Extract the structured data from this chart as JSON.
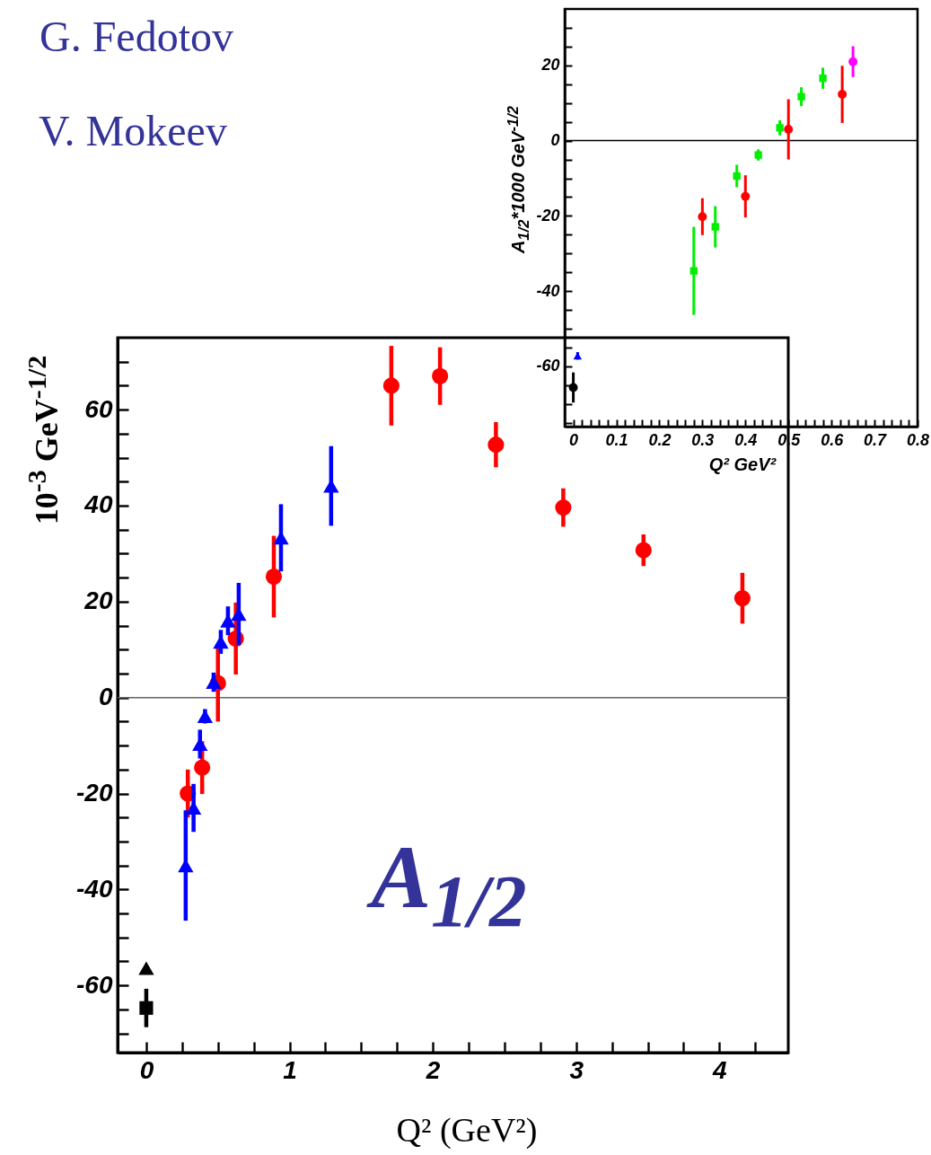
{
  "chart_data": [
    {
      "type": "scatter",
      "xlabel": "Q² (GeV²)",
      "ylabel": "10$^{-3}$ GeV$^{-1/2}$",
      "annotations": [
        "G. Fedotov",
        "V. Mokeev",
        "A$_{1/2}$"
      ],
      "xlim": [
        -0.2,
        4.48
      ],
      "ylim": [
        -74,
        75
      ],
      "xticks": [
        0,
        {
          "value": 0.25,
          "label": null
        },
        {
          "value": 0.5,
          "label": null
        },
        {
          "value": 0.75,
          "label": null
        },
        1,
        {
          "value": 1.25,
          "label": null
        },
        {
          "value": 1.5,
          "label": null
        },
        {
          "value": 1.75,
          "label": null
        },
        2,
        {
          "value": 2.25,
          "label": null
        },
        {
          "value": 2.5,
          "label": null
        },
        {
          "value": 2.75,
          "label": null
        },
        3,
        {
          "value": 3.25,
          "label": null
        },
        {
          "value": 3.5,
          "label": null
        },
        {
          "value": 3.75,
          "label": null
        },
        4,
        {
          "value": 4.25,
          "label": null
        }
      ],
      "yticks": [
        {
          "value": -70,
          "label": null
        },
        {
          "value": -65,
          "label": null
        },
        -60,
        {
          "value": -55,
          "label": null
        },
        {
          "value": -50,
          "label": null
        },
        {
          "value": -45,
          "label": null
        },
        -40,
        {
          "value": -35,
          "label": null
        },
        {
          "value": -30,
          "label": null
        },
        {
          "value": -25,
          "label": null
        },
        -20,
        {
          "value": -15,
          "label": null
        },
        {
          "value": -10,
          "label": null
        },
        {
          "value": -5,
          "label": null
        },
        0,
        {
          "value": 5,
          "label": null
        },
        {
          "value": 10,
          "label": null
        },
        {
          "value": 15,
          "label": null
        },
        20,
        {
          "value": 25,
          "label": null
        },
        {
          "value": 30,
          "label": null
        },
        {
          "value": 35,
          "label": null
        },
        40,
        {
          "value": 45,
          "label": null
        },
        {
          "value": 50,
          "label": null
        },
        {
          "value": 55,
          "label": null
        },
        60,
        {
          "value": 65,
          "label": null
        },
        {
          "value": 70,
          "label": null
        }
      ],
      "ref_lines": [
        {
          "axis": "y",
          "value": 0,
          "color": "#666666"
        }
      ],
      "series": [
        {
          "color": "#ff0000",
          "marker": "circle",
          "x": [
            0.29,
            0.39,
            0.5,
            0.625,
            0.89,
            1.71,
            2.05,
            2.44,
            2.91,
            3.47,
            4.16
          ],
          "values": [
            -20,
            -14.6,
            3,
            12.3,
            25.2,
            65,
            67,
            52.7,
            39.6,
            30.7,
            20.7
          ],
          "errors": [
            5,
            5.5,
            8,
            7.5,
            8.5,
            8.3,
            6,
            4.7,
            4,
            3.3,
            5.3
          ]
        },
        {
          "color": "#0000ff",
          "marker": "triangle",
          "x": [
            0.275,
            0.33,
            0.375,
            0.41,
            0.47,
            0.52,
            0.57,
            0.645,
            0.94,
            1.29
          ],
          "values": [
            -35,
            -23,
            -9.7,
            -3.9,
            3.2,
            11.6,
            16,
            17.4,
            33.3,
            44.1
          ],
          "errors": [
            11.5,
            5,
            3,
            1.5,
            2,
            2.5,
            3,
            6.5,
            7,
            8.3
          ]
        },
        {
          "color": "#000000",
          "marker": "triangle",
          "x": [
            0
          ],
          "values": [
            -56.4
          ]
        },
        {
          "color": "#000000",
          "marker": "square",
          "x": [
            0
          ],
          "values": [
            -64.7
          ],
          "errors": [
            4
          ]
        }
      ]
    },
    {
      "type": "scatter",
      "xlabel": "Q² GeV²",
      "ylabel": "A$_{1/2}$*1000 GeV$^{-1/2}$",
      "xlim": [
        -0.02,
        0.8
      ],
      "ylim": [
        -76,
        35
      ],
      "xticks": [
        0,
        {
          "value": 0.02,
          "label": null
        },
        {
          "value": 0.04,
          "label": null
        },
        {
          "value": 0.06,
          "label": null
        },
        {
          "value": 0.08,
          "label": null
        },
        0.1,
        {
          "value": 0.12,
          "label": null
        },
        {
          "value": 0.14,
          "label": null
        },
        {
          "value": 0.16,
          "label": null
        },
        {
          "value": 0.18,
          "label": null
        },
        0.2,
        {
          "value": 0.22,
          "label": null
        },
        {
          "value": 0.24,
          "label": null
        },
        {
          "value": 0.26,
          "label": null
        },
        {
          "value": 0.28,
          "label": null
        },
        0.3,
        {
          "value": 0.32,
          "label": null
        },
        {
          "value": 0.34,
          "label": null
        },
        {
          "value": 0.36,
          "label": null
        },
        {
          "value": 0.38,
          "label": null
        },
        0.4,
        {
          "value": 0.42,
          "label": null
        },
        {
          "value": 0.44,
          "label": null
        },
        {
          "value": 0.46,
          "label": null
        },
        {
          "value": 0.48,
          "label": null
        },
        0.5,
        {
          "value": 0.52,
          "label": null
        },
        {
          "value": 0.54,
          "label": null
        },
        {
          "value": 0.56,
          "label": null
        },
        {
          "value": 0.58,
          "label": null
        },
        0.6,
        {
          "value": 0.62,
          "label": null
        },
        {
          "value": 0.64,
          "label": null
        },
        {
          "value": 0.66,
          "label": null
        },
        {
          "value": 0.68,
          "label": null
        },
        0.7,
        {
          "value": 0.72,
          "label": null
        },
        {
          "value": 0.74,
          "label": null
        },
        {
          "value": 0.76,
          "label": null
        },
        {
          "value": 0.78,
          "label": null
        },
        0.8
      ],
      "yticks": [
        {
          "value": -75,
          "label": null
        },
        {
          "value": -70,
          "label": null
        },
        {
          "value": -65,
          "label": null
        },
        -60,
        {
          "value": -55,
          "label": null
        },
        {
          "value": -50,
          "label": null
        },
        {
          "value": -45,
          "label": null
        },
        -40,
        {
          "value": -35,
          "label": null
        },
        {
          "value": -30,
          "label": null
        },
        {
          "value": -25,
          "label": null
        },
        -20,
        {
          "value": -15,
          "label": null
        },
        {
          "value": -10,
          "label": null
        },
        {
          "value": -5,
          "label": null
        },
        0,
        {
          "value": 5,
          "label": null
        },
        {
          "value": 10,
          "label": null
        },
        {
          "value": 15,
          "label": null
        },
        20,
        {
          "value": 25,
          "label": null
        },
        {
          "value": 30,
          "label": null
        }
      ],
      "ref_lines": [
        {
          "axis": "y",
          "value": 0,
          "color": "#000000"
        }
      ],
      "series": [
        {
          "color": "#ff0000",
          "marker": "circle",
          "x": [
            0.3,
            0.4,
            0.5,
            0.625
          ],
          "values": [
            -20.2,
            -14.8,
            3,
            12.3
          ],
          "errors": [
            4.9,
            5.6,
            8,
            7.6
          ]
        },
        {
          "color": "#00ee00",
          "marker": "square",
          "x": [
            0.28,
            0.33,
            0.38,
            0.43,
            0.48,
            0.53,
            0.58
          ],
          "values": [
            -34.6,
            -22.9,
            -9.4,
            -3.8,
            3.4,
            11.7,
            16.6
          ],
          "errors": [
            11.7,
            5.5,
            3,
            1.5,
            2,
            2.5,
            2.8
          ]
        },
        {
          "color": "#ff00ff",
          "marker": "circle",
          "x": [
            0.65
          ],
          "values": [
            21
          ],
          "errors": [
            4.1
          ]
        },
        {
          "color": "#0000ff",
          "marker": "triangle",
          "x": [
            0.01
          ],
          "values": [
            -57.2
          ],
          "errors": [
            1
          ]
        },
        {
          "color": "#000000",
          "marker": "circle",
          "x": [
            0
          ],
          "values": [
            -65.6
          ],
          "errors": [
            4
          ]
        }
      ]
    }
  ]
}
